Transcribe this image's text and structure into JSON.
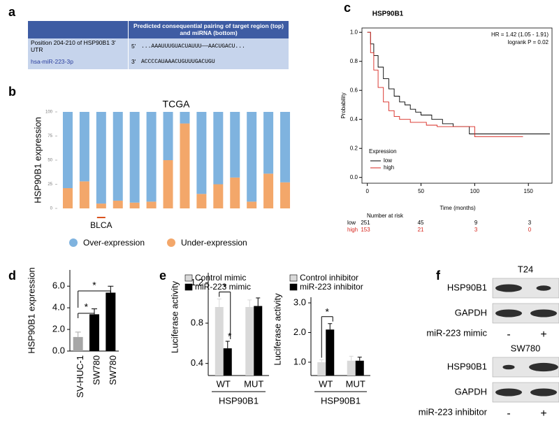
{
  "panel_labels": [
    "a",
    "b",
    "c",
    "d",
    "e",
    "f"
  ],
  "table_a": {
    "header": "Predicted consequential pairing of target region (top) and miRNA (bottom)",
    "rows": [
      [
        "Position 204-210 of HSP90B1 3' UTR",
        "5'",
        "...AAAUUUGUACUAUUU——AACUGACU..."
      ],
      [
        "hsa-miR-223-3p",
        "3'",
        "ACCCCAUAAACUGUUUGACUGU"
      ]
    ]
  },
  "chart_data": [
    {
      "type": "bar",
      "stacked": true,
      "title": "TCGA",
      "y_label": "HSP90B1 expression",
      "categories": [
        null,
        null,
        "BLCA",
        null,
        null,
        null,
        null,
        null,
        null,
        null,
        null,
        null,
        null,
        null
      ],
      "series": [
        {
          "name": "Over-expression",
          "color": "#7fb3df",
          "values": [
            79,
            72,
            95,
            92,
            94,
            93,
            50,
            12,
            85,
            75,
            68,
            93,
            64,
            73
          ]
        },
        {
          "name": "Under-expression",
          "color": "#f3a76a",
          "values": [
            21,
            28,
            5,
            8,
            6,
            7,
            50,
            88,
            15,
            25,
            32,
            7,
            36,
            27
          ]
        }
      ],
      "ylim": [
        0,
        100
      ],
      "yticks": [
        0,
        25,
        50,
        75,
        100
      ],
      "legend": "bottom"
    },
    {
      "type": "line",
      "title": "HSP90B1",
      "x_label": "Time (months)",
      "y_label": "Probability",
      "series": [
        {
          "name": "low",
          "color": "#000000",
          "x": [
            0,
            3,
            3,
            6,
            6,
            10,
            10,
            15,
            15,
            20,
            20,
            25,
            25,
            30,
            30,
            35,
            35,
            40,
            40,
            45,
            45,
            50,
            50,
            60,
            60,
            70,
            70,
            80,
            80,
            95,
            95,
            170
          ],
          "values": [
            1,
            1,
            0.92,
            0.92,
            0.84,
            0.84,
            0.76,
            0.76,
            0.68,
            0.68,
            0.61,
            0.61,
            0.56,
            0.56,
            0.52,
            0.52,
            0.5,
            0.5,
            0.47,
            0.47,
            0.45,
            0.45,
            0.43,
            0.43,
            0.4,
            0.4,
            0.37,
            0.37,
            0.35,
            0.35,
            0.3,
            0.3
          ]
        },
        {
          "name": "high",
          "color": "#d7261e",
          "x": [
            0,
            3,
            3,
            6,
            6,
            10,
            10,
            15,
            15,
            20,
            20,
            25,
            25,
            30,
            30,
            40,
            40,
            55,
            55,
            65,
            65,
            100,
            100,
            145
          ],
          "values": [
            1,
            1,
            0.86,
            0.86,
            0.74,
            0.74,
            0.62,
            0.62,
            0.52,
            0.52,
            0.46,
            0.46,
            0.42,
            0.42,
            0.4,
            0.4,
            0.38,
            0.38,
            0.36,
            0.36,
            0.35,
            0.35,
            0.28,
            0.28
          ]
        }
      ],
      "xlim": [
        -5,
        172
      ],
      "ylim": [
        -0.04,
        1.03
      ],
      "xticks": [
        0,
        50,
        100,
        150
      ],
      "yticks": [
        {
          "value": 0,
          "label": "0.0"
        },
        0.2,
        0.4,
        0.6,
        0.8,
        {
          "value": 1,
          "label": "1.0"
        }
      ],
      "legend_title": "Expression",
      "legend": "lower left",
      "annotations": [
        "HR = 1.42 (1.05 - 1.91)",
        "logrank P = 0.02"
      ],
      "risk_table": {
        "title": "Number at risk",
        "rows": [
          {
            "name": "low",
            "values": [
              251,
              45,
              9,
              3
            ]
          },
          {
            "name": "high",
            "values": [
              153,
              21,
              3,
              0
            ]
          }
        ]
      }
    },
    {
      "type": "bar",
      "y_label": "HSP90B1 expression",
      "categories": [
        "SV-HUC-1",
        "SW780",
        "SW780"
      ],
      "values": [
        1.3,
        3.4,
        5.4
      ],
      "errors": [
        0.45,
        0.5,
        0.6
      ],
      "colors": [
        "#a6a6a6",
        "#000000",
        "#000000"
      ],
      "ylim": [
        0,
        7.5
      ],
      "yticks": [
        {
          "value": 0,
          "label": "0.0"
        },
        {
          "value": 2,
          "label": "2.0"
        },
        {
          "value": 4,
          "label": "4.0"
        },
        {
          "value": 6,
          "label": "6.0"
        }
      ],
      "annotations": [
        "*",
        "*"
      ]
    },
    {
      "type": "bar",
      "grouped": true,
      "x_label": "HSP90B1",
      "y_label": "Luciferase activity",
      "categories": [
        "WT",
        "MUT"
      ],
      "series": [
        {
          "name": "Control mimic",
          "color": "#d9d9d9",
          "values": [
            0.96,
            0.96
          ],
          "errors": [
            0.08,
            0.07
          ]
        },
        {
          "name": "miR-223 mimic",
          "color": "#000000",
          "values": [
            0.55,
            0.97
          ],
          "errors": [
            0.07,
            0.08
          ]
        }
      ],
      "ylim": [
        0.28,
        1.3
      ],
      "yticks": [
        0.4,
        0.8,
        1.2
      ],
      "legend": "top",
      "annotations": [
        "*",
        "*"
      ]
    },
    {
      "type": "bar",
      "grouped": true,
      "x_label": "HSP90B1",
      "y_label": "Luciferase activity",
      "categories": [
        "WT",
        "MUT"
      ],
      "series": [
        {
          "name": "Control inhibitor",
          "color": "#d9d9d9",
          "values": [
            1.0,
            1.05
          ],
          "errors": [
            0.08,
            0.15
          ]
        },
        {
          "name": "miR-223 inhibitor",
          "color": "#000000",
          "values": [
            2.1,
            1.05
          ],
          "errors": [
            0.2,
            0.12
          ]
        }
      ],
      "ylim": [
        0.55,
        3.19
      ],
      "yticks": [
        {
          "value": 1,
          "label": "1.0"
        },
        {
          "value": 2,
          "label": "2.0"
        },
        {
          "value": 3,
          "label": "3.0"
        }
      ],
      "legend": "top",
      "annotations": [
        "*"
      ]
    }
  ],
  "blot_f": {
    "blots": [
      {
        "cell_line": "T24",
        "bands": [
          "HSP90B1",
          "GAPDH"
        ],
        "treatment": "miR-223 mimic",
        "lanes": [
          "-",
          "+"
        ]
      },
      {
        "cell_line": "SW780",
        "bands": [
          "HSP90B1",
          "GAPDH"
        ],
        "treatment": "miR-223 inhibitor",
        "lanes": [
          "-",
          "+"
        ]
      }
    ]
  }
}
